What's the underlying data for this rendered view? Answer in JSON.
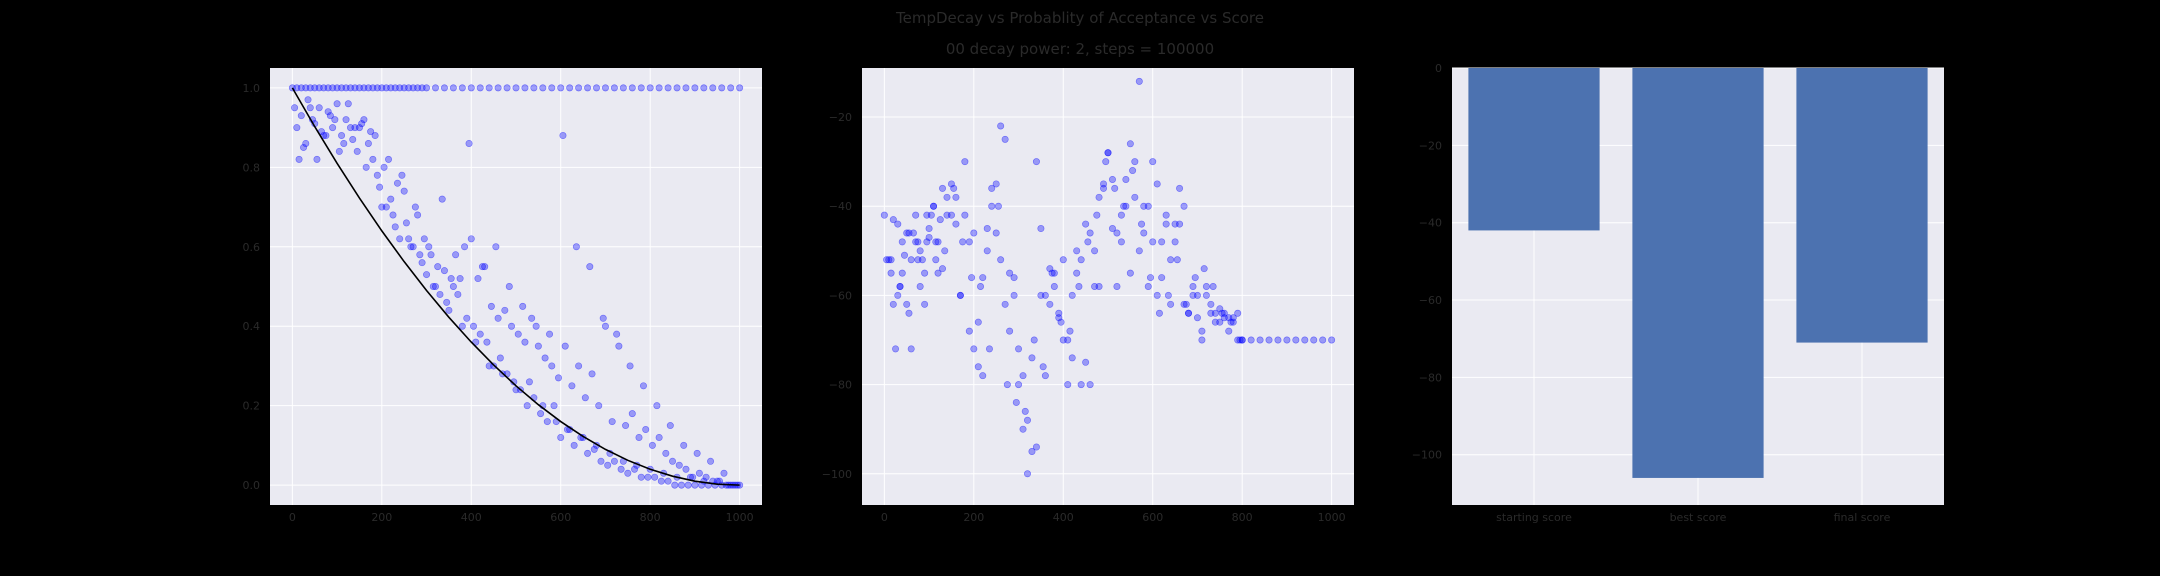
{
  "figure": {
    "title": "TempDecay vs Probablity of Acceptance vs Score",
    "subtitle": "00 decay power: 2, steps = 100000"
  },
  "colors": {
    "background": "#000000",
    "plot_bg": "#eaeaf2",
    "grid": "#ffffff",
    "scatter": "#0000ff",
    "curve": "#000000",
    "bar": "#4c72b0",
    "text": "#2a2a2a"
  },
  "chart_data": [
    {
      "type": "scatter",
      "title": "",
      "xlabel": "",
      "ylabel": "",
      "xlim": [
        -50,
        1050
      ],
      "ylim": [
        -0.05,
        1.05
      ],
      "xticks": [
        0,
        200,
        400,
        600,
        800,
        1000
      ],
      "yticks": [
        0.0,
        0.2,
        0.4,
        0.6,
        0.8,
        1.0
      ],
      "xtick_labels": [
        "0",
        "200",
        "400",
        "600",
        "800",
        "1000"
      ],
      "ytick_labels": [
        "0.0",
        "0.2",
        "0.4",
        "0.6",
        "0.8",
        "1.0"
      ],
      "grid": true,
      "curve": {
        "label": "",
        "x": [
          0,
          50,
          100,
          150,
          200,
          250,
          300,
          350,
          400,
          450,
          500,
          550,
          600,
          650,
          700,
          750,
          800,
          850,
          900,
          950,
          1000
        ],
        "y": [
          1.0,
          0.9025,
          0.81,
          0.7225,
          0.64,
          0.5625,
          0.49,
          0.4225,
          0.36,
          0.3025,
          0.25,
          0.2025,
          0.16,
          0.1225,
          0.09,
          0.0625,
          0.04,
          0.0225,
          0.01,
          0.0025,
          0.0
        ]
      },
      "series": [
        {
          "x": [
            0,
            10,
            20,
            30,
            40,
            50,
            60,
            70,
            80,
            90,
            100,
            110,
            120,
            130,
            140,
            150,
            160,
            170,
            180,
            190,
            200,
            210,
            220,
            230,
            240,
            250,
            260,
            270,
            280,
            290,
            300,
            320,
            340,
            360,
            380,
            400,
            420,
            440,
            460,
            480,
            500,
            520,
            540,
            560,
            580,
            600,
            620,
            640,
            660,
            680,
            700,
            720,
            740,
            760,
            780,
            800,
            820,
            840,
            860,
            880,
            900,
            920,
            940,
            960,
            980,
            1000,
            10,
            25,
            40,
            55,
            70,
            85,
            100,
            115,
            130,
            145,
            160,
            175,
            190,
            205,
            220,
            235,
            250,
            265,
            280,
            295,
            310,
            325,
            340,
            355,
            370,
            385,
            400,
            415,
            430,
            445,
            460,
            475,
            490,
            505,
            520,
            535,
            550,
            565,
            580,
            595,
            610,
            625,
            640,
            655,
            670,
            685,
            700,
            715,
            730,
            745,
            760,
            775,
            790,
            805,
            820,
            835,
            850,
            865,
            880,
            895,
            910,
            925,
            940,
            955,
            970,
            985,
            1000,
            15,
            30,
            45,
            60,
            75,
            90,
            105,
            120,
            135,
            150,
            165,
            180,
            195,
            210,
            225,
            240,
            255,
            270,
            285,
            300,
            315,
            330,
            345,
            360,
            375,
            390,
            405,
            420,
            435,
            450,
            465,
            480,
            495,
            510,
            525,
            540,
            555,
            570,
            585,
            600,
            615,
            630,
            645,
            660,
            675,
            690,
            705,
            720,
            735,
            750,
            765,
            780,
            795,
            810,
            825,
            840,
            855,
            870,
            885,
            900,
            915,
            930,
            945,
            960,
            975,
            990,
            5,
            20,
            35,
            50,
            65,
            80,
            95,
            110,
            125,
            140,
            155,
            170,
            185,
            200,
            215,
            230,
            245,
            260,
            275,
            290,
            305,
            320,
            335,
            350,
            365,
            380,
            395,
            410,
            425,
            440,
            455,
            470,
            485,
            500,
            515,
            530,
            545,
            560,
            575,
            590,
            605,
            620,
            635,
            650,
            665,
            680,
            695,
            710,
            725,
            740,
            755,
            770,
            785,
            800,
            815,
            830,
            845,
            860,
            875,
            890,
            905,
            920,
            935,
            950,
            965,
            980,
            995
          ],
          "y": [
            1.0,
            1.0,
            1.0,
            1.0,
            1.0,
            1.0,
            1.0,
            1.0,
            1.0,
            1.0,
            1.0,
            1.0,
            1.0,
            1.0,
            1.0,
            1.0,
            1.0,
            1.0,
            1.0,
            1.0,
            1.0,
            1.0,
            1.0,
            1.0,
            1.0,
            1.0,
            1.0,
            1.0,
            1.0,
            1.0,
            1.0,
            1.0,
            1.0,
            1.0,
            1.0,
            1.0,
            1.0,
            1.0,
            1.0,
            1.0,
            1.0,
            1.0,
            1.0,
            1.0,
            1.0,
            1.0,
            1.0,
            1.0,
            1.0,
            1.0,
            1.0,
            1.0,
            1.0,
            1.0,
            1.0,
            1.0,
            1.0,
            1.0,
            1.0,
            1.0,
            1.0,
            1.0,
            1.0,
            1.0,
            1.0,
            1.0,
            0.9,
            0.85,
            0.95,
            0.82,
            0.88,
            0.93,
            0.96,
            0.86,
            0.9,
            0.84,
            0.92,
            0.89,
            0.78,
            0.8,
            0.72,
            0.76,
            0.74,
            0.6,
            0.68,
            0.62,
            0.58,
            0.55,
            0.54,
            0.52,
            0.48,
            0.6,
            0.62,
            0.52,
            0.55,
            0.45,
            0.42,
            0.44,
            0.4,
            0.38,
            0.36,
            0.42,
            0.35,
            0.32,
            0.3,
            0.27,
            0.35,
            0.25,
            0.3,
            0.22,
            0.28,
            0.2,
            0.4,
            0.16,
            0.35,
            0.15,
            0.18,
            0.12,
            0.14,
            0.1,
            0.12,
            0.08,
            0.06,
            0.05,
            0.04,
            0.02,
            0.03,
            0.02,
            0.01,
            0.01,
            0.0,
            0.0,
            0.0,
            0.82,
            0.86,
            0.92,
            0.95,
            0.88,
            0.9,
            0.84,
            0.92,
            0.87,
            0.9,
            0.8,
            0.82,
            0.75,
            0.7,
            0.68,
            0.62,
            0.66,
            0.6,
            0.58,
            0.53,
            0.5,
            0.48,
            0.46,
            0.5,
            0.52,
            0.42,
            0.4,
            0.38,
            0.36,
            0.3,
            0.32,
            0.28,
            0.26,
            0.24,
            0.2,
            0.22,
            0.18,
            0.16,
            0.2,
            0.12,
            0.14,
            0.1,
            0.12,
            0.08,
            0.09,
            0.06,
            0.05,
            0.06,
            0.04,
            0.03,
            0.04,
            0.02,
            0.02,
            0.02,
            0.01,
            0.01,
            0.0,
            0.0,
            0.0,
            0.0,
            0.0,
            0.0,
            0.0,
            0.0,
            0.0,
            0.0,
            0.95,
            0.93,
            0.97,
            0.91,
            0.89,
            0.94,
            0.92,
            0.88,
            0.96,
            0.9,
            0.91,
            0.86,
            0.88,
            0.7,
            0.82,
            0.65,
            0.78,
            0.62,
            0.7,
            0.56,
            0.6,
            0.5,
            0.72,
            0.44,
            0.58,
            0.4,
            0.86,
            0.36,
            0.55,
            0.3,
            0.6,
            0.28,
            0.5,
            0.24,
            0.45,
            0.26,
            0.4,
            0.2,
            0.38,
            0.16,
            0.88,
            0.14,
            0.6,
            0.12,
            0.55,
            0.1,
            0.42,
            0.08,
            0.38,
            0.06,
            0.3,
            0.05,
            0.25,
            0.04,
            0.2,
            0.03,
            0.15,
            0.02,
            0.1,
            0.02,
            0.08,
            0.01,
            0.06,
            0.01,
            0.03,
            0.0,
            0.0
          ]
        }
      ]
    },
    {
      "type": "scatter",
      "title": "",
      "xlabel": "",
      "ylabel": "",
      "xlim": [
        -50,
        1050
      ],
      "ylim": [
        -107,
        -9
      ],
      "xticks": [
        0,
        200,
        400,
        600,
        800,
        1000
      ],
      "yticks": [
        -100,
        -80,
        -60,
        -40,
        -20
      ],
      "xtick_labels": [
        "0",
        "200",
        "400",
        "600",
        "800",
        "1000"
      ],
      "ytick_labels": [
        "−100",
        "−80",
        "−60",
        "−40",
        "−20"
      ],
      "grid": true,
      "series": [
        {
          "x": [
            0,
            5,
            10,
            15,
            20,
            25,
            30,
            35,
            40,
            45,
            50,
            55,
            60,
            65,
            70,
            75,
            80,
            85,
            90,
            95,
            100,
            105,
            110,
            115,
            120,
            125,
            130,
            140,
            150,
            160,
            170,
            180,
            190,
            200,
            210,
            220,
            230,
            240,
            250,
            260,
            270,
            280,
            290,
            300,
            310,
            320,
            330,
            340,
            350,
            360,
            370,
            380,
            390,
            400,
            410,
            420,
            430,
            440,
            450,
            460,
            470,
            480,
            490,
            500,
            510,
            520,
            530,
            540,
            550,
            560,
            570,
            580,
            590,
            600,
            610,
            620,
            630,
            640,
            650,
            660,
            670,
            680,
            690,
            700,
            710,
            720,
            730,
            740,
            750,
            760,
            770,
            780,
            790,
            800,
            820,
            840,
            860,
            880,
            900,
            920,
            940,
            960,
            980,
            1000,
            20,
            40,
            60,
            80,
            100,
            120,
            140,
            160,
            180,
            200,
            220,
            240,
            260,
            280,
            300,
            320,
            340,
            360,
            380,
            400,
            420,
            440,
            460,
            480,
            500,
            520,
            540,
            560,
            580,
            600,
            620,
            640,
            660,
            680,
            700,
            720,
            740,
            760,
            780,
            800,
            15,
            35,
            55,
            75,
            95,
            115,
            135,
            155,
            175,
            195,
            215,
            235,
            255,
            275,
            295,
            315,
            335,
            355,
            375,
            395,
            415,
            435,
            455,
            475,
            495,
            515,
            535,
            555,
            575,
            595,
            615,
            635,
            655,
            675,
            695,
            715,
            735,
            755,
            775,
            795,
            30,
            50,
            70,
            90,
            110,
            130,
            150,
            170,
            190,
            210,
            230,
            250,
            270,
            290,
            310,
            330,
            350,
            370,
            390,
            410,
            430,
            450,
            470,
            490,
            510,
            530,
            550,
            570,
            590,
            610,
            630,
            650,
            670,
            690,
            710,
            730,
            750,
            770,
            790
          ],
          "y": [
            -42,
            -52,
            -52,
            -55,
            -62,
            -72,
            -60,
            -58,
            -55,
            -51,
            -62,
            -64,
            -72,
            -46,
            -42,
            -48,
            -50,
            -52,
            -55,
            -48,
            -45,
            -42,
            -40,
            -52,
            -48,
            -43,
            -36,
            -42,
            -35,
            -38,
            -60,
            -42,
            -68,
            -72,
            -76,
            -78,
            -45,
            -40,
            -35,
            -22,
            -25,
            -55,
            -60,
            -80,
            -90,
            -100,
            -95,
            -30,
            -45,
            -78,
            -62,
            -55,
            -65,
            -70,
            -80,
            -60,
            -55,
            -52,
            -75,
            -80,
            -50,
            -58,
            -35,
            -28,
            -45,
            -58,
            -42,
            -40,
            -55,
            -38,
            -12,
            -46,
            -40,
            -30,
            -35,
            -48,
            -42,
            -52,
            -44,
            -36,
            -40,
            -64,
            -58,
            -65,
            -68,
            -60,
            -62,
            -64,
            -63,
            -65,
            -65,
            -65,
            -64,
            -70,
            -70,
            -70,
            -70,
            -70,
            -70,
            -70,
            -70,
            -70,
            -70,
            -70,
            -43,
            -48,
            -52,
            -58,
            -47,
            -55,
            -38,
            -44,
            -30,
            -46,
            -56,
            -36,
            -52,
            -68,
            -72,
            -88,
            -94,
            -60,
            -58,
            -52,
            -74,
            -80,
            -46,
            -38,
            -28,
            -46,
            -34,
            -30,
            -40,
            -48,
            -56,
            -62,
            -44,
            -64,
            -60,
            -58,
            -66,
            -64,
            -66,
            -70,
            -52,
            -58,
            -46,
            -52,
            -42,
            -48,
            -50,
            -36,
            -48,
            -56,
            -58,
            -72,
            -40,
            -80,
            -84,
            -86,
            -70,
            -76,
            -55,
            -66,
            -68,
            -58,
            -48,
            -42,
            -30,
            -36,
            -40,
            -32,
            -44,
            -56,
            -64,
            -60,
            -52,
            -62,
            -56,
            -54,
            -58,
            -64,
            -66,
            -70,
            -44,
            -46,
            -48,
            -62,
            -40,
            -54,
            -42,
            -60,
            -48,
            -66,
            -50,
            -46,
            -62,
            -56,
            -78,
            -74,
            -60,
            -54,
            -64,
            -70,
            -50,
            -44,
            -58,
            -36,
            -34,
            -48,
            -26,
            -50,
            -58,
            -60,
            -44,
            -48,
            -62,
            -60,
            -70,
            -64,
            -66,
            -68,
            -70
          ]
        }
      ]
    },
    {
      "type": "bar",
      "title": "",
      "xlabel": "",
      "ylabel": "",
      "categories": [
        "starting score",
        "best score",
        "final score"
      ],
      "values": [
        -42,
        -106,
        -71
      ],
      "ylim": [
        -113,
        0
      ],
      "yticks": [
        0,
        -20,
        -40,
        -60,
        -80,
        -100
      ],
      "ytick_labels": [
        "0",
        "−20",
        "−40",
        "−60",
        "−80",
        "−100"
      ],
      "grid": true
    }
  ]
}
